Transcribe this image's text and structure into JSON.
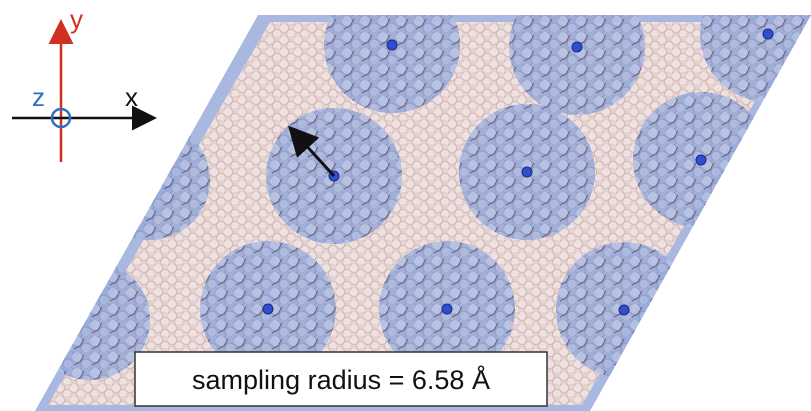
{
  "axes": {
    "y": "y",
    "z": "z",
    "x": "x"
  },
  "caption": "sampling radius = 6.58 Å"
}
